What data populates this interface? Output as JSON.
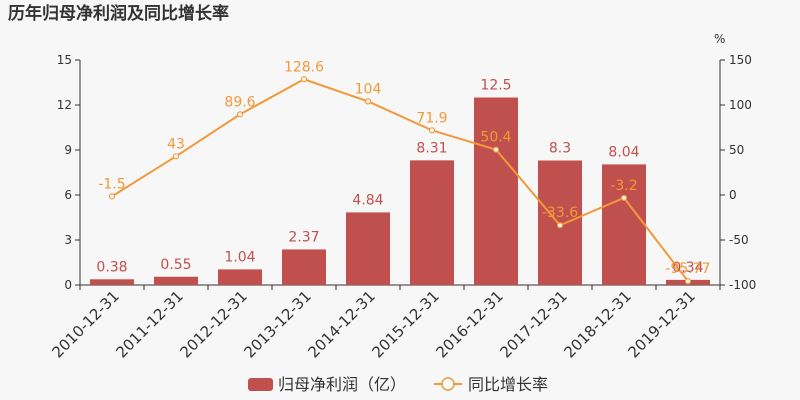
{
  "chart_data": {
    "type": "bar",
    "title": "历年归母净利润及同比增长率",
    "categories": [
      "2010-12-31",
      "2011-12-31",
      "2012-12-31",
      "2013-12-31",
      "2014-12-31",
      "2015-12-31",
      "2016-12-31",
      "2017-12-31",
      "2018-12-31",
      "2019-12-31"
    ],
    "series": [
      {
        "name": "归母净利润（亿）",
        "type": "bar",
        "axis": "left",
        "values": [
          0.38,
          0.55,
          1.04,
          2.37,
          4.84,
          8.31,
          12.5,
          8.3,
          8.04,
          0.34
        ],
        "labels": [
          "0.38",
          "0.55",
          "1.04",
          "2.37",
          "4.84",
          "8.31",
          "12.5",
          "8.3",
          "8.04",
          "0.34"
        ]
      },
      {
        "name": "同比增长率",
        "type": "line",
        "axis": "right",
        "values": [
          -1.5,
          43,
          89.6,
          128.6,
          104,
          71.9,
          50.4,
          -33.6,
          -3.2,
          -95.77
        ],
        "labels": [
          "-1.5",
          "43",
          "89.6",
          "128.6",
          "104",
          "71.9",
          "50.4",
          "-33.6",
          "-3.2",
          "-95.77"
        ]
      }
    ],
    "y_left": {
      "ylim": [
        0,
        15
      ],
      "ticks": [
        "0",
        "3",
        "6",
        "9",
        "12",
        "15"
      ]
    },
    "y_right": {
      "ylim": [
        -100,
        150
      ],
      "ticks": [
        "-100",
        "-50",
        "0",
        "50",
        "100",
        "150"
      ],
      "unit": "%"
    },
    "grid": false,
    "legend": "bottom-center",
    "colors": {
      "bar": "#c0504d",
      "line": "#f2993a",
      "axis": "#333333"
    }
  }
}
